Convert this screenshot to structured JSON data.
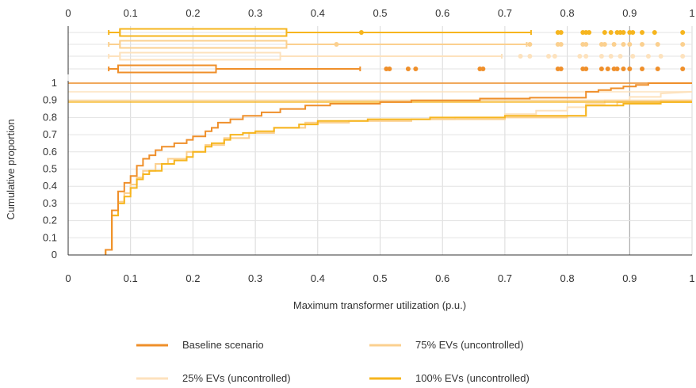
{
  "chart_data": {
    "type": "line",
    "subtype": "cumulative-distribution-with-boxplots",
    "xlabel": "Maximum transformer utilization (p.u.)",
    "ylabel": "Cumulative proportion",
    "xlim": [
      0,
      1
    ],
    "ylim": [
      0,
      1
    ],
    "x_ticks": [
      "0",
      "0.1",
      "0.2",
      "0.3",
      "0.4",
      "0.5",
      "0.6",
      "0.7",
      "0.8",
      "0.9",
      "1"
    ],
    "y_ticks": [
      "0",
      "0.1",
      "0.2",
      "0.3",
      "0.4",
      "0.5",
      "0.6",
      "0.7",
      "0.8",
      "0.9",
      "1"
    ],
    "grid": true,
    "legend_position": "bottom",
    "series": [
      {
        "name": "Baseline scenario",
        "color": "#ef8f2a",
        "cdf": [
          [
            0.06,
            0
          ],
          [
            0.06,
            0.03
          ],
          [
            0.07,
            0.03
          ],
          [
            0.07,
            0.26
          ],
          [
            0.08,
            0.26
          ],
          [
            0.08,
            0.37
          ],
          [
            0.09,
            0.37
          ],
          [
            0.09,
            0.42
          ],
          [
            0.1,
            0.42
          ],
          [
            0.1,
            0.46
          ],
          [
            0.11,
            0.46
          ],
          [
            0.11,
            0.52
          ],
          [
            0.12,
            0.52
          ],
          [
            0.12,
            0.56
          ],
          [
            0.13,
            0.56
          ],
          [
            0.13,
            0.58
          ],
          [
            0.14,
            0.58
          ],
          [
            0.14,
            0.61
          ],
          [
            0.15,
            0.61
          ],
          [
            0.15,
            0.63
          ],
          [
            0.17,
            0.63
          ],
          [
            0.17,
            0.65
          ],
          [
            0.19,
            0.65
          ],
          [
            0.19,
            0.67
          ],
          [
            0.2,
            0.67
          ],
          [
            0.2,
            0.69
          ],
          [
            0.22,
            0.69
          ],
          [
            0.22,
            0.72
          ],
          [
            0.23,
            0.72
          ],
          [
            0.23,
            0.74
          ],
          [
            0.24,
            0.74
          ],
          [
            0.24,
            0.77
          ],
          [
            0.26,
            0.77
          ],
          [
            0.26,
            0.79
          ],
          [
            0.28,
            0.79
          ],
          [
            0.28,
            0.81
          ],
          [
            0.31,
            0.81
          ],
          [
            0.31,
            0.83
          ],
          [
            0.34,
            0.83
          ],
          [
            0.34,
            0.85
          ],
          [
            0.38,
            0.85
          ],
          [
            0.38,
            0.87
          ],
          [
            0.42,
            0.87
          ],
          [
            0.42,
            0.88
          ],
          [
            0.5,
            0.88
          ],
          [
            0.5,
            0.89
          ],
          [
            0.55,
            0.89
          ],
          [
            0.55,
            0.9
          ],
          [
            0.66,
            0.9
          ],
          [
            0.66,
            0.91
          ],
          [
            0.74,
            0.91
          ],
          [
            0.74,
            0.915
          ],
          [
            0.83,
            0.915
          ],
          [
            0.83,
            0.95
          ],
          [
            0.85,
            0.95
          ],
          [
            0.85,
            0.96
          ],
          [
            0.87,
            0.96
          ],
          [
            0.87,
            0.97
          ],
          [
            0.89,
            0.97
          ],
          [
            0.89,
            0.98
          ],
          [
            0.91,
            0.98
          ],
          [
            0.91,
            0.99
          ],
          [
            0.93,
            0.99
          ],
          [
            0.93,
            1.0
          ],
          [
            1.0,
            1.0
          ]
        ],
        "box": {
          "whisker_low": 0.065,
          "q1": 0.08,
          "median": 0.08,
          "q3": 0.237,
          "whisker_high": 0.468
        },
        "outliers": [
          0.51,
          0.515,
          0.545,
          0.557,
          0.66,
          0.665,
          0.785,
          0.79,
          0.825,
          0.83,
          0.855,
          0.865,
          0.875,
          0.88,
          0.89,
          0.9,
          0.92,
          0.945,
          0.985
        ]
      },
      {
        "name": "25% EVs (uncontrolled)",
        "color": "#fde2bd",
        "cdf": [
          [
            0.06,
            0
          ],
          [
            0.06,
            0.03
          ],
          [
            0.07,
            0.03
          ],
          [
            0.07,
            0.23
          ],
          [
            0.08,
            0.23
          ],
          [
            0.08,
            0.31
          ],
          [
            0.09,
            0.31
          ],
          [
            0.09,
            0.36
          ],
          [
            0.1,
            0.36
          ],
          [
            0.1,
            0.41
          ],
          [
            0.11,
            0.41
          ],
          [
            0.11,
            0.45
          ],
          [
            0.12,
            0.45
          ],
          [
            0.12,
            0.49
          ],
          [
            0.14,
            0.49
          ],
          [
            0.14,
            0.53
          ],
          [
            0.16,
            0.53
          ],
          [
            0.16,
            0.56
          ],
          [
            0.19,
            0.56
          ],
          [
            0.19,
            0.6
          ],
          [
            0.22,
            0.6
          ],
          [
            0.22,
            0.64
          ],
          [
            0.25,
            0.64
          ],
          [
            0.25,
            0.68
          ],
          [
            0.29,
            0.68
          ],
          [
            0.29,
            0.71
          ],
          [
            0.33,
            0.71
          ],
          [
            0.33,
            0.74
          ],
          [
            0.38,
            0.74
          ],
          [
            0.38,
            0.77
          ],
          [
            0.45,
            0.77
          ],
          [
            0.45,
            0.78
          ],
          [
            0.55,
            0.78
          ],
          [
            0.55,
            0.79
          ],
          [
            0.62,
            0.79
          ],
          [
            0.62,
            0.8
          ],
          [
            0.7,
            0.8
          ],
          [
            0.7,
            0.82
          ],
          [
            0.75,
            0.82
          ],
          [
            0.75,
            0.84
          ],
          [
            0.8,
            0.84
          ],
          [
            0.8,
            0.86
          ],
          [
            0.83,
            0.86
          ],
          [
            0.83,
            0.88
          ],
          [
            0.86,
            0.88
          ],
          [
            0.86,
            0.9
          ],
          [
            0.9,
            0.9
          ],
          [
            0.9,
            0.92
          ],
          [
            0.95,
            0.92
          ],
          [
            0.95,
            0.94
          ],
          [
            1.0,
            0.95
          ]
        ],
        "box": {
          "whisker_low": 0.065,
          "q1": 0.083,
          "median": 0.083,
          "q3": 0.34,
          "whisker_high": 0.695
        },
        "outliers": [
          0.725,
          0.74,
          0.77,
          0.78,
          0.82,
          0.83,
          0.855,
          0.87,
          0.885,
          0.905,
          0.93,
          0.95,
          0.985
        ]
      },
      {
        "name": "75% EVs (uncontrolled)",
        "color": "#fbd08f",
        "cdf": [
          [
            0.06,
            0
          ],
          [
            0.06,
            0.03
          ],
          [
            0.07,
            0.03
          ],
          [
            0.07,
            0.23
          ],
          [
            0.08,
            0.23
          ],
          [
            0.08,
            0.31
          ],
          [
            0.09,
            0.31
          ],
          [
            0.09,
            0.36
          ],
          [
            0.1,
            0.36
          ],
          [
            0.1,
            0.41
          ],
          [
            0.11,
            0.41
          ],
          [
            0.11,
            0.45
          ],
          [
            0.12,
            0.45
          ],
          [
            0.12,
            0.49
          ],
          [
            0.14,
            0.49
          ],
          [
            0.14,
            0.53
          ],
          [
            0.16,
            0.53
          ],
          [
            0.16,
            0.56
          ],
          [
            0.19,
            0.56
          ],
          [
            0.19,
            0.6
          ],
          [
            0.22,
            0.6
          ],
          [
            0.22,
            0.64
          ],
          [
            0.25,
            0.64
          ],
          [
            0.25,
            0.68
          ],
          [
            0.29,
            0.68
          ],
          [
            0.29,
            0.71
          ],
          [
            0.33,
            0.71
          ],
          [
            0.33,
            0.74
          ],
          [
            0.38,
            0.74
          ],
          [
            0.38,
            0.77
          ],
          [
            0.45,
            0.77
          ],
          [
            0.45,
            0.78
          ],
          [
            0.55,
            0.78
          ],
          [
            0.55,
            0.79
          ],
          [
            0.7,
            0.79
          ],
          [
            0.7,
            0.8
          ],
          [
            0.8,
            0.8
          ],
          [
            0.8,
            0.81
          ],
          [
            0.83,
            0.81
          ],
          [
            0.83,
            0.87
          ],
          [
            0.88,
            0.87
          ],
          [
            0.88,
            0.89
          ],
          [
            0.95,
            0.89
          ],
          [
            0.95,
            0.9
          ],
          [
            1.0,
            0.9
          ]
        ],
        "box": {
          "whisker_low": 0.065,
          "q1": 0.083,
          "median": 0.083,
          "q3": 0.35,
          "whisker_high": 0.735
        },
        "outliers": [
          0.43,
          0.74,
          0.785,
          0.79,
          0.825,
          0.83,
          0.855,
          0.86,
          0.875,
          0.89,
          0.9,
          0.92,
          0.945,
          0.985
        ]
      },
      {
        "name": "100% EVs (uncontrolled)",
        "color": "#f6b51e",
        "cdf": [
          [
            0.06,
            0
          ],
          [
            0.06,
            0.03
          ],
          [
            0.07,
            0.03
          ],
          [
            0.07,
            0.23
          ],
          [
            0.08,
            0.23
          ],
          [
            0.08,
            0.3
          ],
          [
            0.09,
            0.3
          ],
          [
            0.09,
            0.34
          ],
          [
            0.1,
            0.34
          ],
          [
            0.1,
            0.39
          ],
          [
            0.11,
            0.39
          ],
          [
            0.11,
            0.44
          ],
          [
            0.12,
            0.44
          ],
          [
            0.12,
            0.47
          ],
          [
            0.13,
            0.47
          ],
          [
            0.13,
            0.49
          ],
          [
            0.15,
            0.49
          ],
          [
            0.15,
            0.53
          ],
          [
            0.17,
            0.53
          ],
          [
            0.17,
            0.55
          ],
          [
            0.19,
            0.55
          ],
          [
            0.19,
            0.57
          ],
          [
            0.2,
            0.57
          ],
          [
            0.2,
            0.6
          ],
          [
            0.22,
            0.6
          ],
          [
            0.22,
            0.63
          ],
          [
            0.23,
            0.63
          ],
          [
            0.23,
            0.65
          ],
          [
            0.25,
            0.65
          ],
          [
            0.25,
            0.67
          ],
          [
            0.26,
            0.67
          ],
          [
            0.26,
            0.7
          ],
          [
            0.28,
            0.7
          ],
          [
            0.28,
            0.71
          ],
          [
            0.3,
            0.71
          ],
          [
            0.3,
            0.72
          ],
          [
            0.33,
            0.72
          ],
          [
            0.33,
            0.74
          ],
          [
            0.37,
            0.74
          ],
          [
            0.37,
            0.76
          ],
          [
            0.4,
            0.76
          ],
          [
            0.4,
            0.78
          ],
          [
            0.48,
            0.78
          ],
          [
            0.48,
            0.79
          ],
          [
            0.58,
            0.79
          ],
          [
            0.58,
            0.8
          ],
          [
            0.7,
            0.8
          ],
          [
            0.7,
            0.81
          ],
          [
            0.83,
            0.81
          ],
          [
            0.83,
            0.87
          ],
          [
            0.89,
            0.87
          ],
          [
            0.89,
            0.88
          ],
          [
            0.95,
            0.88
          ],
          [
            0.95,
            0.89
          ],
          [
            1.0,
            0.89
          ]
        ],
        "box": {
          "whisker_low": 0.065,
          "q1": 0.083,
          "median": 0.083,
          "q3": 0.35,
          "whisker_high": 0.742
        },
        "outliers": [
          0.47,
          0.785,
          0.79,
          0.825,
          0.83,
          0.835,
          0.86,
          0.87,
          0.88,
          0.885,
          0.89,
          0.9,
          0.905,
          0.92,
          0.94,
          0.985
        ]
      }
    ]
  }
}
